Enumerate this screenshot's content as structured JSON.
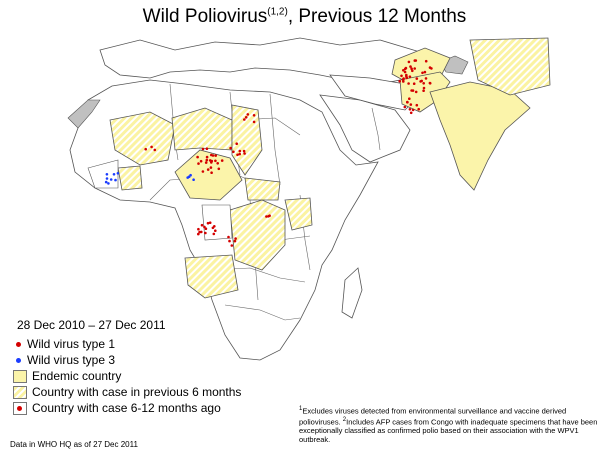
{
  "title": {
    "text": "Wild Poliovirus",
    "superscript": "(1,2)",
    "suffix": ", Previous 12 Months"
  },
  "date_range": "28 Dec 2010 – 27 Dec 2011",
  "legend": [
    {
      "label": "Wild virus type 1",
      "kind": "dot",
      "color": "#d40000"
    },
    {
      "label": "Wild virus type 3",
      "kind": "dot",
      "color": "#1a3cff"
    },
    {
      "label": "Endemic country",
      "kind": "swatch",
      "fill": "#fbf4aa"
    },
    {
      "label": "Country with case in previous 6 months",
      "kind": "swatch",
      "fill": "hatched yellow"
    },
    {
      "label": "Country with case 6-12 months ago",
      "kind": "swatch-dot",
      "fill": "#ffffff"
    }
  ],
  "footnote": {
    "mark1": "1",
    "text1": "Excludes viruses detected from environmental surveillance and vaccine derived polioviruses.",
    "mark2": "2",
    "text2": "Includes AFP cases from Congo with inadequate specimens that have been exceptionally classified as confirmed polio based on their association with the WPV1 outbreak."
  },
  "source_note": "Data in WHO HQ as of 27 Dec 2011",
  "colors": {
    "endemic": "#fbf4aa",
    "no_data_grey": "#c0c0c0",
    "border": "#555555",
    "type1": "#d40000",
    "type3": "#1a3cff"
  }
}
